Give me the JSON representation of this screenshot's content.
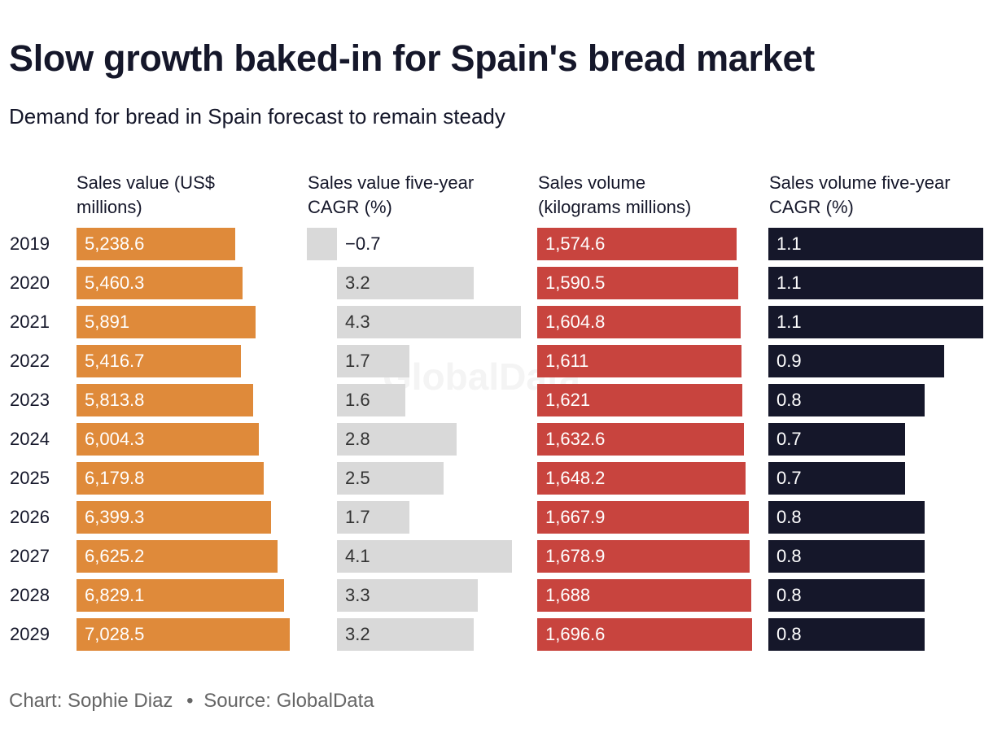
{
  "title": "Slow growth baked-in for Spain's bread market",
  "subtitle": "Demand for bread in Spain forecast to remain steady",
  "footer": {
    "credit": "Chart: Sophie Diaz",
    "separator": "•",
    "source": "Source: GlobalData"
  },
  "watermark": "GlobalData",
  "colors": {
    "sales_value": "#df8a3a",
    "sales_value_cagr": "#d9d9d9",
    "sales_volume": "#c8443e",
    "sales_volume_cagr": "#15172a"
  },
  "chart_data": {
    "type": "bar",
    "orientation": "horizontal",
    "title": "Slow growth baked-in for Spain's bread market",
    "subtitle": "Demand for bread in Spain forecast to remain steady",
    "categories": [
      "2019",
      "2020",
      "2021",
      "2022",
      "2023",
      "2024",
      "2025",
      "2026",
      "2027",
      "2028",
      "2029"
    ],
    "series": [
      {
        "name": "Sales value (US$ millions)",
        "values": [
          5238.6,
          5460.3,
          5891,
          5416.7,
          5813.8,
          6004.3,
          6179.8,
          6399.3,
          6625.2,
          6829.1,
          7028.5
        ],
        "labels": [
          "5,238.6",
          "5,460.3",
          "5,891",
          "5,416.7",
          "5,813.8",
          "6,004.3",
          "6,179.8",
          "6,399.3",
          "6,625.2",
          "6,829.1",
          "7,028.5"
        ]
      },
      {
        "name": "Sales value five-year CAGR (%)",
        "values": [
          -0.7,
          3.2,
          4.3,
          1.7,
          1.6,
          2.8,
          2.5,
          1.7,
          4.1,
          3.3,
          3.2
        ],
        "labels": [
          "−0.7",
          "3.2",
          "4.3",
          "1.7",
          "1.6",
          "2.8",
          "2.5",
          "1.7",
          "4.1",
          "3.3",
          "3.2"
        ]
      },
      {
        "name": "Sales volume (kilograms millions)",
        "values": [
          1574.6,
          1590.5,
          1604.8,
          1611,
          1621,
          1632.6,
          1648.2,
          1667.9,
          1678.9,
          1688,
          1696.6
        ],
        "labels": [
          "1,574.6",
          "1,590.5",
          "1,604.8",
          "1,611",
          "1,621",
          "1,632.6",
          "1,648.2",
          "1,667.9",
          "1,678.9",
          "1,688",
          "1,696.6"
        ]
      },
      {
        "name": "Sales volume five-year CAGR (%)",
        "values": [
          1.1,
          1.1,
          1.1,
          0.9,
          0.8,
          0.7,
          0.7,
          0.8,
          0.8,
          0.8,
          0.8
        ],
        "labels": [
          "1.1",
          "1.1",
          "1.1",
          "0.9",
          "0.8",
          "0.7",
          "0.7",
          "0.8",
          "0.8",
          "0.8",
          "0.8"
        ]
      }
    ],
    "column_headers": [
      [
        "Sales value (US$",
        "millions)"
      ],
      [
        "Sales value five-year",
        "CAGR (%)"
      ],
      [
        "Sales volume",
        "(kilograms millions)"
      ],
      [
        "Sales volume five-year",
        "CAGR (%)"
      ]
    ],
    "grid": false,
    "legend": "none"
  }
}
